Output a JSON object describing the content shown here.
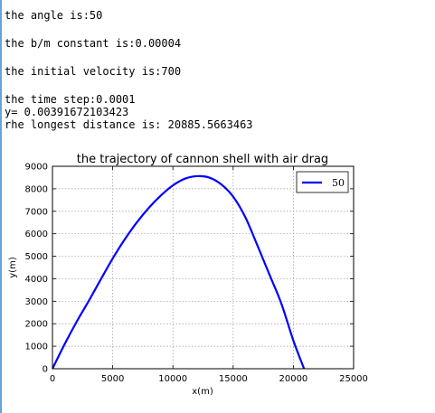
{
  "output": {
    "angle_line": "the angle is:50",
    "bm_line": "the b/m constant is:0.00004",
    "velocity_line": "the initial velocity is:700",
    "timestep_line": "the time step:0.0001",
    "y_line": "y= 0.00391672103423",
    "distance_line": "rhe longest distance is: 20885.5663463"
  },
  "chart_data": {
    "type": "line",
    "title": "the trajectory of cannon shell with air drag",
    "xlabel": "x(m)",
    "ylabel": "y(m)",
    "xlim": [
      0,
      25000
    ],
    "ylim": [
      0,
      9000
    ],
    "x_ticks": [
      "0",
      "5000",
      "10000",
      "15000",
      "20000",
      "25000"
    ],
    "y_ticks": [
      "0",
      "1000",
      "2000",
      "3000",
      "4000",
      "5000",
      "6000",
      "7000",
      "8000",
      "9000"
    ],
    "grid": true,
    "legend_position": "top-right",
    "series": [
      {
        "name": "50",
        "color": "#0000ff",
        "x": [
          0,
          1000,
          2000,
          3000,
          4000,
          5000,
          6000,
          7000,
          8000,
          9000,
          10000,
          11000,
          12000,
          13000,
          14000,
          15000,
          16000,
          17000,
          18000,
          19000,
          20000,
          20886
        ],
        "y": [
          0,
          1080,
          2080,
          3000,
          3960,
          4900,
          5750,
          6500,
          7150,
          7700,
          8150,
          8450,
          8560,
          8500,
          8200,
          7650,
          6750,
          5500,
          4200,
          2900,
          1250,
          0
        ]
      }
    ]
  }
}
